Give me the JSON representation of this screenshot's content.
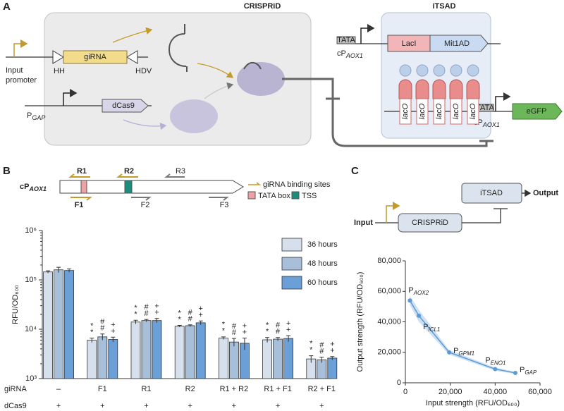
{
  "panel_labels": [
    "A",
    "B",
    "C"
  ],
  "panel_a": {
    "crispri_title": "CRISPRiD",
    "itsad_title": "iTSAD",
    "input_promoter": [
      "Input",
      "promoter"
    ],
    "hh": "HH",
    "grna": "giRNA",
    "hdv": "HDV",
    "pgap": {
      "main": "P",
      "sub": "GAP"
    },
    "dcas9": "dCas9",
    "tata": [
      "TATA",
      "TATA"
    ],
    "laci": "LacI",
    "mit1ad": "Mit1AD",
    "cpaox1": [
      {
        "main": "cP",
        "sub": "AOX1"
      },
      {
        "main": "cP",
        "sub": "AOX1"
      }
    ],
    "laco": [
      "lacO",
      "lacO",
      "lacO",
      "lacO",
      "lacO"
    ],
    "egfp": "eGFP"
  },
  "panel_b_diagram": {
    "promoter": {
      "main": "cP",
      "sub": "AOX1"
    },
    "sites": [
      "R1",
      "R2",
      "R3",
      "F1",
      "F2",
      "F3"
    ],
    "legend": [
      "giRNA binding sites",
      "TATA box",
      "TSS"
    ]
  },
  "panel_c_diagram": {
    "input": "Input",
    "crispri": "CRISPRiD",
    "itsad": "iTSAD",
    "output": "Output"
  },
  "chart_data": [
    {
      "type": "bar",
      "log_scale": true,
      "ylabel": "RFU/OD₆₀₀",
      "categories": [
        "–",
        "F1",
        "R1",
        "R2",
        "R1 + R2",
        "R1 + F1",
        "R2 + F1"
      ],
      "row_labels": [
        "giRNA",
        "dCas9"
      ],
      "dcas9": [
        "+",
        "+",
        "+",
        "+",
        "+",
        "+",
        "+"
      ],
      "ylim": [
        1000,
        1000000
      ],
      "yticks": [
        {
          "value": 1000,
          "label": "10³"
        },
        {
          "value": 10000,
          "label": "10⁴"
        },
        {
          "value": 100000,
          "label": "10⁵"
        },
        {
          "value": 1000000,
          "label": "10⁶"
        }
      ],
      "series": [
        {
          "name": "36 hours",
          "color": "#d5e0ec",
          "values": [
            145000,
            6000,
            14000,
            11500,
            6600,
            6100,
            2500
          ],
          "errors": [
            8000,
            600,
            1200,
            500,
            400,
            700,
            400
          ],
          "significance": [
            null,
            "*",
            "*",
            "*",
            "*",
            "*",
            "*"
          ]
        },
        {
          "name": "48 hours",
          "color": "#a8bfda",
          "values": [
            160000,
            7000,
            15000,
            11800,
            5500,
            6300,
            2400
          ],
          "errors": [
            20000,
            1000,
            800,
            500,
            1000,
            500,
            300
          ],
          "significance": [
            null,
            "#",
            "#",
            "#",
            "#",
            "#",
            "#"
          ]
        },
        {
          "name": "60 hours",
          "color": "#6a9fd8",
          "values": [
            155000,
            6200,
            15000,
            13500,
            5200,
            6500,
            2600
          ],
          "errors": [
            12000,
            700,
            1500,
            1200,
            1400,
            900,
            200
          ],
          "significance": [
            null,
            "+",
            "+",
            "+",
            "+",
            "+",
            "+"
          ]
        }
      ]
    },
    {
      "type": "line",
      "xlabel": "Input strength (RFU/OD₆₀₀)",
      "ylabel": "Output strength (RFU/OD₆₀₀)",
      "xlim": [
        0,
        60000
      ],
      "ylim": [
        0,
        80000
      ],
      "xticks": [
        0,
        {
          "value": 20000,
          "label": "20,000"
        },
        {
          "value": 40000,
          "label": "40,000"
        },
        {
          "value": 60000,
          "label": "60,000"
        }
      ],
      "yticks": [
        0,
        {
          "value": 20000,
          "label": "20,000"
        },
        {
          "value": 40000,
          "label": "40,000"
        },
        {
          "value": 60000,
          "label": "60,000"
        },
        {
          "value": 80000,
          "label": "80,000"
        }
      ],
      "series": [
        {
          "color": "#5b9bd5",
          "x": [
            2000,
            6000,
            19500,
            40000,
            49000
          ],
          "values": [
            54000,
            44000,
            20000,
            9000,
            6500
          ],
          "band_upper": [
            57000,
            48000,
            21500,
            10000,
            7300
          ],
          "band_lower": [
            51000,
            40000,
            18500,
            8000,
            5700
          ],
          "point_labels": [
            {
              "main": "P",
              "sub": "AOX2"
            },
            {
              "main": "P",
              "sub": "ICL1"
            },
            {
              "main": "P",
              "sub": "GPM1"
            },
            {
              "main": "P",
              "sub": "ENO1"
            },
            {
              "main": "P",
              "sub": "GAP"
            }
          ]
        }
      ]
    }
  ]
}
